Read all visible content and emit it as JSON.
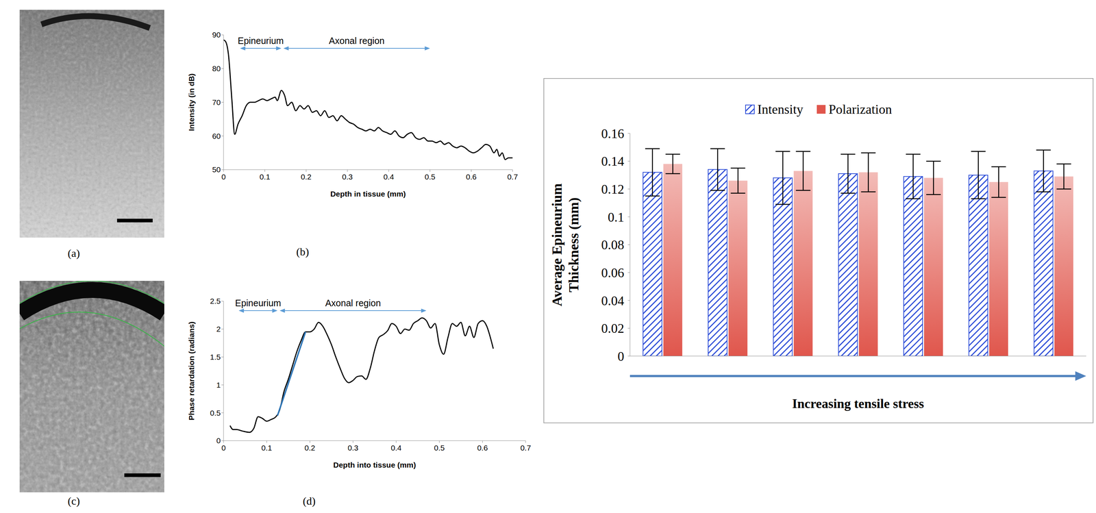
{
  "chart_data": [
    {
      "type": "image",
      "panel_label": "(a)"
    },
    {
      "type": "line",
      "panel_label": "(b)",
      "x_label": "Depth in tissue (mm)",
      "y_label": "Intensity (in dB)",
      "xlim": [
        0,
        0.7
      ],
      "xticks": [
        0,
        0.1,
        0.2,
        0.3,
        0.4,
        0.5,
        0.6,
        0.7
      ],
      "ylim": [
        50,
        90
      ],
      "yticks": [
        50,
        60,
        70,
        80,
        90
      ],
      "grid": false,
      "annotations": [
        {
          "text": "Epineurium",
          "x": [
            0.04,
            0.14
          ],
          "y": 86
        },
        {
          "text": "Axonal region",
          "x": [
            0.145,
            0.5
          ],
          "y": 86
        }
      ],
      "series": [
        {
          "color": "#000000",
          "x": [
            0,
            0.005,
            0.012,
            0.02,
            0.027,
            0.035,
            0.045,
            0.055,
            0.065,
            0.075,
            0.085,
            0.095,
            0.105,
            0.115,
            0.125,
            0.13,
            0.14,
            0.148,
            0.155,
            0.165,
            0.175,
            0.185,
            0.195,
            0.205,
            0.215,
            0.225,
            0.235,
            0.245,
            0.255,
            0.265,
            0.275,
            0.285,
            0.295,
            0.305,
            0.315,
            0.325,
            0.335,
            0.345,
            0.355,
            0.365,
            0.375,
            0.385,
            0.395,
            0.405,
            0.415,
            0.425,
            0.435,
            0.445,
            0.455,
            0.465,
            0.475,
            0.485,
            0.495,
            0.505,
            0.515,
            0.525,
            0.535,
            0.545,
            0.555,
            0.565,
            0.575,
            0.585,
            0.595,
            0.605,
            0.615,
            0.625,
            0.635,
            0.645,
            0.655,
            0.662,
            0.668,
            0.675,
            0.682,
            0.69,
            0.7
          ],
          "values": [
            88.5,
            88,
            84,
            71,
            60.5,
            63.5,
            66,
            69,
            70,
            70,
            70.5,
            71,
            70.5,
            71,
            71.5,
            70.5,
            73.5,
            72,
            69,
            70,
            67.5,
            69,
            68,
            69,
            67,
            67.5,
            66,
            67.5,
            65.5,
            66,
            64.5,
            66,
            65,
            64,
            63.5,
            62.5,
            62,
            61.5,
            62,
            61.5,
            62.5,
            61.5,
            61,
            60.5,
            61.5,
            60,
            59.5,
            60.5,
            61,
            59.5,
            59,
            59.5,
            58.5,
            58.5,
            58,
            58.5,
            57.5,
            58,
            57,
            56.5,
            57,
            56.5,
            55.5,
            55,
            55.5,
            56.5,
            57.5,
            57,
            55,
            56,
            54,
            55,
            53,
            53.5,
            53.5
          ]
        }
      ]
    },
    {
      "type": "image",
      "panel_label": "(c)"
    },
    {
      "type": "line",
      "panel_label": "(d)",
      "x_label": "Depth into tissue (mm)",
      "y_label": "Phase retardation (radians)",
      "xlim": [
        0,
        0.7
      ],
      "xticks": [
        0,
        0.1,
        0.2,
        0.3,
        0.4,
        0.5,
        0.6,
        0.7
      ],
      "ylim": [
        0,
        2.5
      ],
      "yticks": [
        0,
        0.5,
        1,
        1.5,
        2,
        2.5
      ],
      "grid": false,
      "annotations": [
        {
          "text": "Epineurium",
          "x": [
            0.035,
            0.125
          ],
          "y": 2.33
        },
        {
          "text": "Axonal region",
          "x": [
            0.13,
            0.47
          ],
          "y": 2.33
        }
      ],
      "series": [
        {
          "color": "#000000",
          "x": [
            0.015,
            0.022,
            0.03,
            0.045,
            0.06,
            0.07,
            0.08,
            0.09,
            0.1,
            0.11,
            0.12,
            0.13,
            0.14,
            0.15,
            0.16,
            0.17,
            0.18,
            0.19,
            0.2,
            0.21,
            0.22,
            0.23,
            0.24,
            0.25,
            0.26,
            0.27,
            0.28,
            0.29,
            0.3,
            0.31,
            0.32,
            0.33,
            0.34,
            0.35,
            0.36,
            0.37,
            0.38,
            0.39,
            0.4,
            0.41,
            0.42,
            0.43,
            0.44,
            0.45,
            0.46,
            0.47,
            0.48,
            0.49,
            0.5,
            0.51,
            0.52,
            0.53,
            0.54,
            0.55,
            0.56,
            0.57,
            0.58,
            0.59,
            0.6,
            0.61,
            0.62,
            0.625
          ],
          "values": [
            0.27,
            0.2,
            0.2,
            0.17,
            0.15,
            0.22,
            0.43,
            0.4,
            0.35,
            0.38,
            0.42,
            0.55,
            0.88,
            1.1,
            1.35,
            1.6,
            1.8,
            1.95,
            1.95,
            2.0,
            2.12,
            2.05,
            1.9,
            1.72,
            1.5,
            1.3,
            1.12,
            1.04,
            1.08,
            1.15,
            1.16,
            1.1,
            1.3,
            1.62,
            1.85,
            1.9,
            1.97,
            2.1,
            2.05,
            1.92,
            2.0,
            1.98,
            2.1,
            2.15,
            2.2,
            2.15,
            2.02,
            2.1,
            1.72,
            1.55,
            1.85,
            2.1,
            2.05,
            2.12,
            1.88,
            2.05,
            1.85,
            2.1,
            2.15,
            2.05,
            1.8,
            1.65
          ]
        },
        {
          "color": "#2e75b6",
          "x": [
            0.125,
            0.19
          ],
          "values": [
            0.45,
            1.95
          ]
        }
      ]
    },
    {
      "type": "bar",
      "categories": [
        null,
        null,
        null,
        null,
        null,
        null,
        null
      ],
      "x_label": "Increasing tensile stress",
      "y_label": "Average Epineurium Thickness (mm)",
      "ylim": [
        0,
        0.16
      ],
      "yticks": [
        0,
        0.02,
        0.04,
        0.06,
        0.08,
        0.1,
        0.12,
        0.14,
        0.16
      ],
      "legend": "top",
      "tick_labels": "y",
      "grid": false,
      "series": [
        {
          "name": "Intensity",
          "color": "#2f4fd8",
          "values": [
            0.132,
            0.134,
            0.128,
            0.131,
            0.129,
            0.13,
            0.133
          ],
          "errors": [
            0.017,
            0.015,
            0.019,
            0.014,
            0.016,
            0.017,
            0.015
          ]
        },
        {
          "name": "Polarization",
          "color": "#e0564c",
          "values": [
            0.138,
            0.126,
            0.133,
            0.132,
            0.128,
            0.125,
            0.129
          ],
          "errors": [
            0.007,
            0.009,
            0.014,
            0.014,
            0.012,
            0.011,
            0.009
          ]
        }
      ]
    }
  ]
}
